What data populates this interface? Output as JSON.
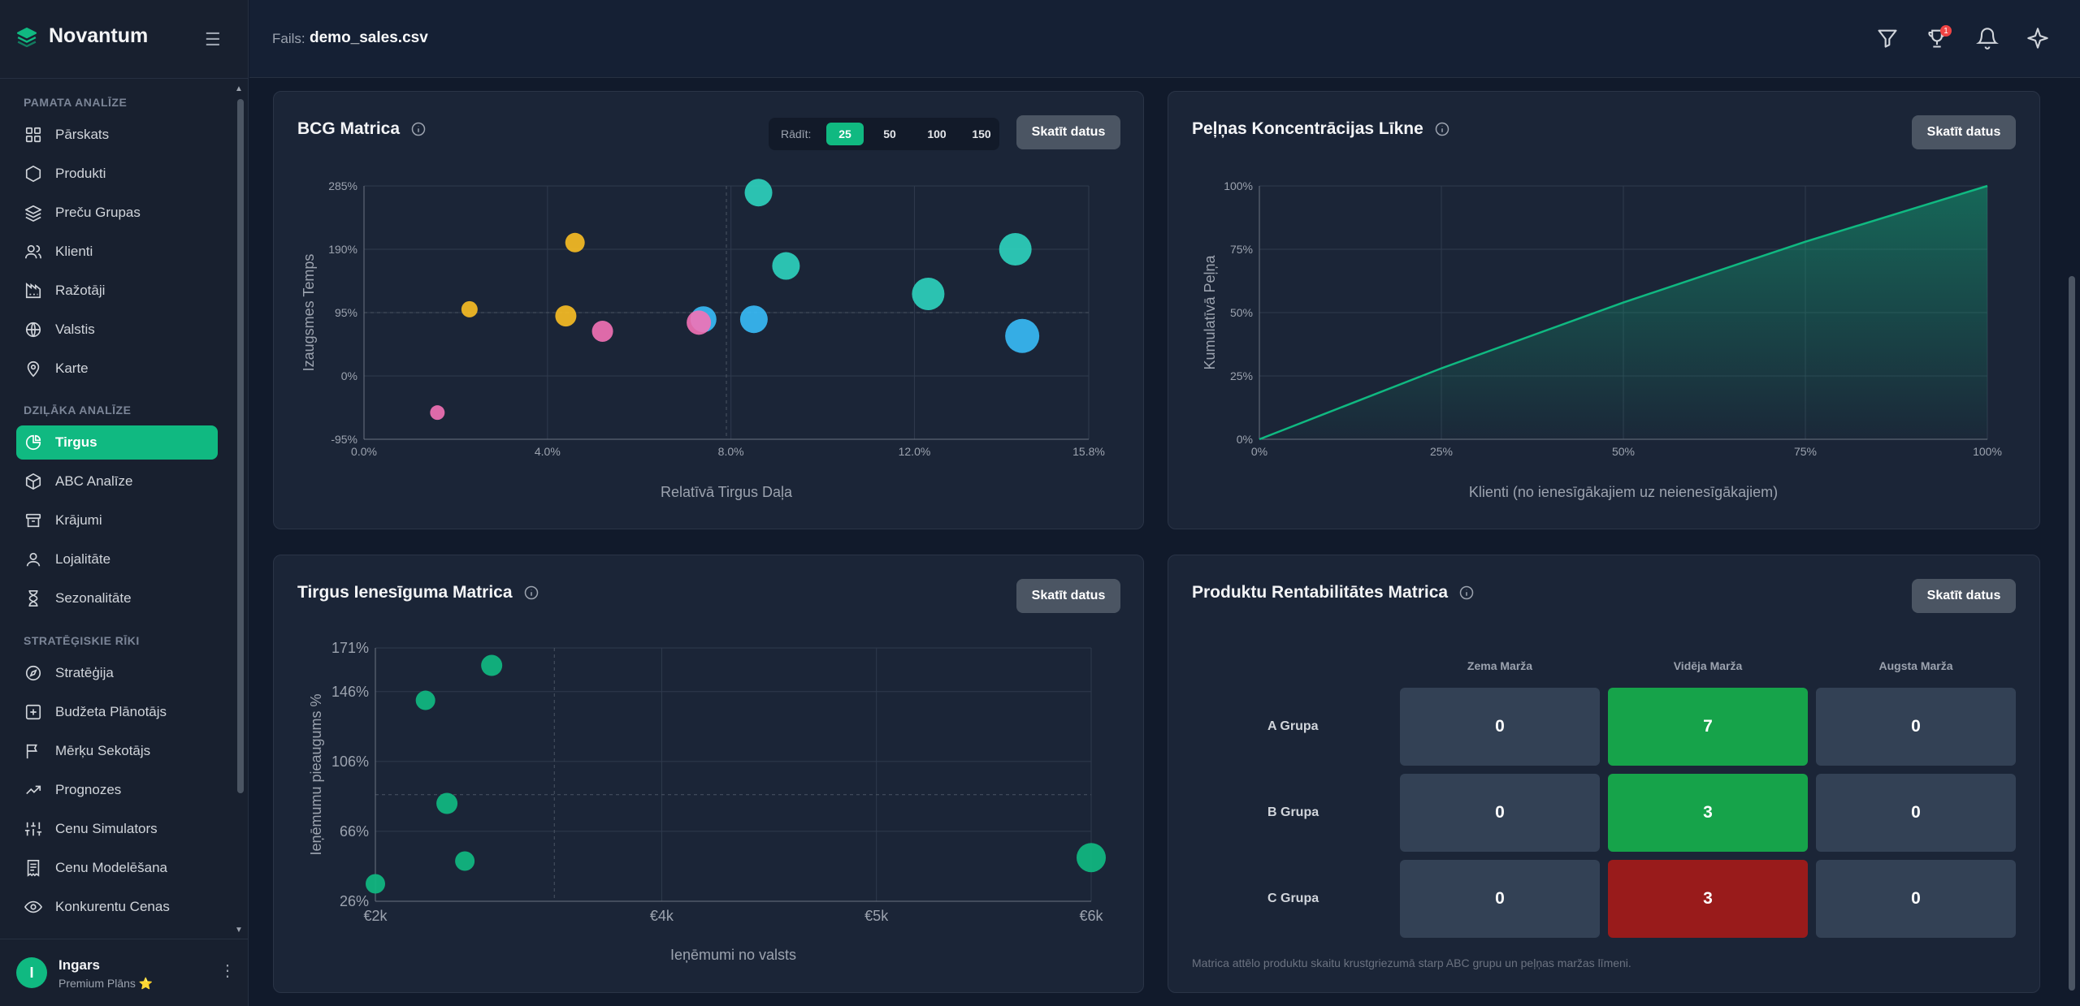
{
  "app": {
    "name": "Novantum",
    "brand_color": "#10b981"
  },
  "sidebar": {
    "sections": [
      {
        "title": "PAMATA ANALĪZE",
        "items": [
          {
            "label": "Pārskats",
            "icon": "dashboard-icon"
          },
          {
            "label": "Produkti",
            "icon": "hexagon-icon"
          },
          {
            "label": "Preču Grupas",
            "icon": "layers-icon"
          },
          {
            "label": "Klienti",
            "icon": "users-icon"
          },
          {
            "label": "Ražotāji",
            "icon": "factory-icon"
          },
          {
            "label": "Valstis",
            "icon": "globe-icon"
          },
          {
            "label": "Karte",
            "icon": "map-pin-icon"
          }
        ]
      },
      {
        "title": "DZIĻĀKA ANALĪZE",
        "items": [
          {
            "label": "Tirgus",
            "icon": "pie-chart-icon",
            "active": true
          },
          {
            "label": "ABC Analīze",
            "icon": "box-icon"
          },
          {
            "label": "Krājumi",
            "icon": "archive-icon"
          },
          {
            "label": "Lojalitāte",
            "icon": "user-icon"
          },
          {
            "label": "Sezonalitāte",
            "icon": "hourglass-icon"
          }
        ]
      },
      {
        "title": "STRATĒĢISKIE RĪKI",
        "items": [
          {
            "label": "Stratēģija",
            "icon": "compass-icon"
          },
          {
            "label": "Budžeta Plānotājs",
            "icon": "plus-square-icon"
          },
          {
            "label": "Mērķu Sekotājs",
            "icon": "flag-icon"
          },
          {
            "label": "Prognozes",
            "icon": "trending-up-icon"
          },
          {
            "label": "Cenu Simulators",
            "icon": "sliders-icon"
          },
          {
            "label": "Cenu Modelēšana",
            "icon": "receipt-icon"
          },
          {
            "label": "Konkurentu Cenas",
            "icon": "eye-icon"
          }
        ]
      }
    ],
    "user": {
      "initial": "I",
      "name": "Ingars",
      "plan": "Premium Plāns ⭐"
    }
  },
  "topbar": {
    "file_label": "Fails:",
    "file_name": "demo_sales.csv",
    "trophy_badge": "1"
  },
  "bcg": {
    "title": "BCG Matrica",
    "show_label": "Rādīt:",
    "show_options": [
      "25",
      "50",
      "100",
      "150"
    ],
    "selected_option": "25",
    "button": "Skatīt datus",
    "chart_data": {
      "type": "scatter",
      "title": "BCG Matrica",
      "xlabel": "Relatīvā Tirgus Daļa",
      "ylabel": "Izaugsmes Temps",
      "xlim": [
        0,
        15.8
      ],
      "ylim": [
        -95,
        285
      ],
      "x_ticks": [
        "0.0%",
        "4.0%",
        "8.0%",
        "12.0%",
        "15.8%"
      ],
      "y_ticks": [
        "285%",
        "190%",
        "95%",
        "0%",
        "-95%"
      ],
      "points": [
        {
          "x": 8.6,
          "y": 275,
          "size": 17,
          "color": "#2dd4bf"
        },
        {
          "x": 4.6,
          "y": 200,
          "size": 12,
          "color": "#fbbf24"
        },
        {
          "x": 14.2,
          "y": 190,
          "size": 20,
          "color": "#2dd4bf"
        },
        {
          "x": 9.2,
          "y": 165,
          "size": 17,
          "color": "#2dd4bf"
        },
        {
          "x": 12.3,
          "y": 123,
          "size": 20,
          "color": "#2dd4bf"
        },
        {
          "x": 2.3,
          "y": 100,
          "size": 10,
          "color": "#fbbf24"
        },
        {
          "x": 4.4,
          "y": 90,
          "size": 13,
          "color": "#fbbf24"
        },
        {
          "x": 7.4,
          "y": 85,
          "size": 16,
          "color": "#38bdf8"
        },
        {
          "x": 8.5,
          "y": 85,
          "size": 17,
          "color": "#38bdf8"
        },
        {
          "x": 7.3,
          "y": 80,
          "size": 15,
          "color": "#f472b6"
        },
        {
          "x": 5.2,
          "y": 67,
          "size": 13,
          "color": "#f472b6"
        },
        {
          "x": 14.35,
          "y": 60,
          "size": 21,
          "color": "#38bdf8"
        },
        {
          "x": 1.6,
          "y": -55,
          "size": 9,
          "color": "#f472b6"
        }
      ],
      "mid_x": 7.9,
      "mid_y": 95
    }
  },
  "profit": {
    "title": "Peļņas Koncentrācijas Līkne",
    "button": "Skatīt datus",
    "chart_data": {
      "type": "area",
      "title": "Peļņas Koncentrācijas Līkne",
      "xlabel": "Klienti (no ienesīgākajiem uz neienesīgākajiem)",
      "ylabel": "Kumulatīvā Peļņa",
      "xlim": [
        0,
        100
      ],
      "ylim": [
        0,
        100
      ],
      "x_ticks": [
        "0%",
        "25%",
        "50%",
        "75%",
        "100%"
      ],
      "y_ticks": [
        "100%",
        "75%",
        "50%",
        "25%",
        "0%"
      ],
      "x": [
        0,
        25,
        50,
        75,
        100
      ],
      "y": [
        0,
        28,
        54,
        78,
        100
      ],
      "color": "#10b981"
    }
  },
  "revenue": {
    "title": "Tirgus Ienesīguma Matrica",
    "button": "Skatīt datus",
    "chart_data": {
      "type": "scatter",
      "title": "Tirgus Ienesīguma Matrica",
      "xlabel": "Ieņēmumi no valsts",
      "ylabel": "Ieņēmumu pieaugums %",
      "xlim": [
        2000,
        6000
      ],
      "ylim": [
        26,
        171
      ],
      "x_ticks": [
        "€2k",
        "€4k",
        "€5k",
        "€6k"
      ],
      "y_ticks": [
        "171%",
        "146%",
        "106%",
        "66%",
        "26%"
      ],
      "points": [
        {
          "x": 2650,
          "y": 161,
          "size": 13
        },
        {
          "x": 2280,
          "y": 141,
          "size": 12
        },
        {
          "x": 2400,
          "y": 82,
          "size": 13
        },
        {
          "x": 2500,
          "y": 49,
          "size": 12
        },
        {
          "x": 2000,
          "y": 36,
          "size": 12
        },
        {
          "x": 6000,
          "y": 51,
          "size": 18
        }
      ],
      "mid_x": 3000,
      "mid_y": 87,
      "color": "#10b981"
    }
  },
  "profitability": {
    "title": "Produktu Rentabilitātes Matrica",
    "button": "Skatīt datus",
    "columns": [
      "Zema Marža",
      "Vidēja Marža",
      "Augsta Marža"
    ],
    "rows": [
      {
        "label": "A Grupa",
        "values": [
          "0",
          "7",
          "0"
        ],
        "colors": [
          "#334155",
          "#16a34a",
          "#334155"
        ]
      },
      {
        "label": "B Grupa",
        "values": [
          "0",
          "3",
          "0"
        ],
        "colors": [
          "#334155",
          "#16a34a",
          "#334155"
        ]
      },
      {
        "label": "C Grupa",
        "values": [
          "0",
          "3",
          "0"
        ],
        "colors": [
          "#334155",
          "#991b1b",
          "#334155"
        ]
      }
    ],
    "note": "Matrica attēlo produktu skaitu krustgriezumā starp ABC grupu un peļņas maržas līmeni."
  }
}
